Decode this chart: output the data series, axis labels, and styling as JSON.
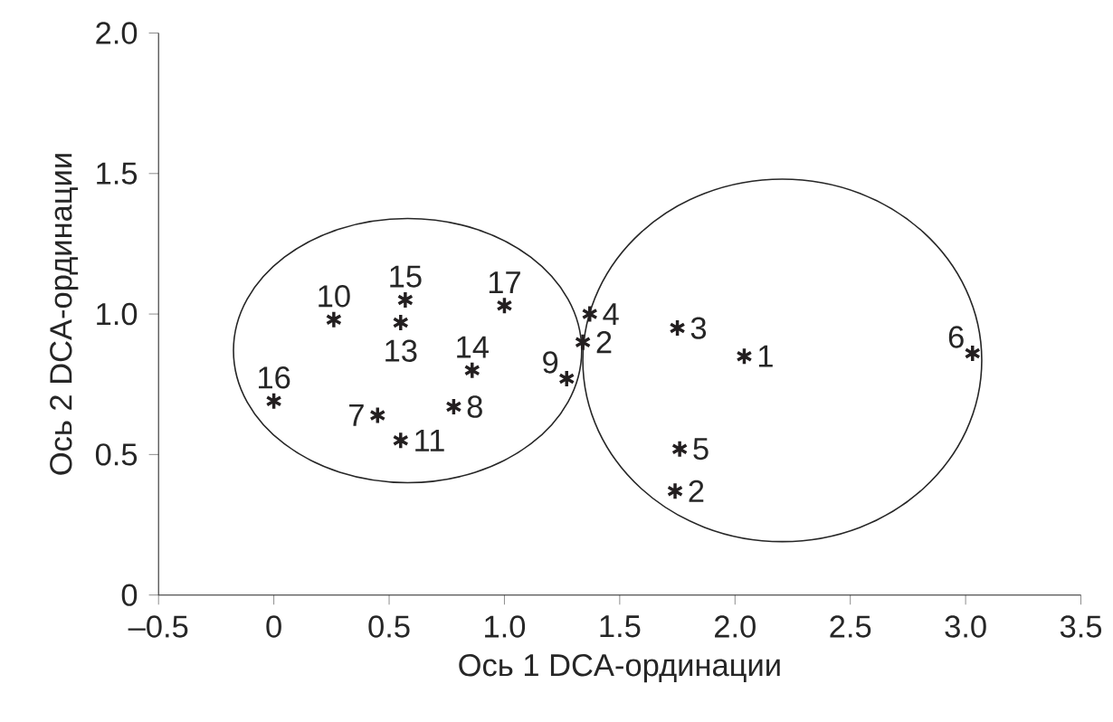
{
  "chart_data": {
    "type": "scatter",
    "xlabel": "Ось 1 DCA-ординации",
    "ylabel": "Ось 2 DCA-ординации",
    "x": [
      2.04,
      1.34,
      1.74,
      1.75,
      1.37,
      1.76,
      3.03,
      0.45,
      0.78,
      1.27,
      0.26,
      0.55,
      0.55,
      0.86,
      0.57,
      0,
      1.0
    ],
    "values": [
      0.85,
      0.9,
      0.37,
      0.95,
      1.0,
      0.52,
      0.86,
      0.64,
      0.67,
      0.77,
      0.98,
      0.55,
      0.97,
      0.8,
      1.05,
      0.69,
      1.03
    ],
    "color": "#231f20",
    "marker": "cross",
    "xlim": [
      -0.5,
      3.5
    ],
    "ylim": [
      0,
      2
    ],
    "xticks": [
      {
        "value": -0.5,
        "label": "–0.5"
      },
      0,
      0.5,
      {
        "value": 1,
        "label": "1.0"
      },
      1.5,
      {
        "value": 2,
        "label": "2.0"
      },
      2.5,
      {
        "value": 3,
        "label": "3.0"
      },
      3.5
    ],
    "yticks": [
      0,
      0.5,
      {
        "value": 1,
        "label": "1.0"
      },
      1.5,
      {
        "value": 2,
        "label": "2.0"
      }
    ],
    "annotations": [
      {
        "text": "1",
        "x": 2.04,
        "y": 0.85
      },
      {
        "text": "2",
        "x": 1.34,
        "y": 0.9
      },
      {
        "text": "2",
        "x": 1.74,
        "y": 0.37
      },
      {
        "text": "3",
        "x": 1.75,
        "y": 0.95
      },
      {
        "text": "4",
        "x": 1.37,
        "y": 1.0
      },
      {
        "text": "5",
        "x": 1.76,
        "y": 0.52
      },
      {
        "text": "6",
        "x": 3.03,
        "y": 0.86
      },
      {
        "text": "7",
        "x": 0.45,
        "y": 0.64
      },
      {
        "text": "8",
        "x": 0.78,
        "y": 0.67
      },
      {
        "text": "9",
        "x": 1.27,
        "y": 0.77
      },
      {
        "text": "10",
        "x": 0.26,
        "y": 0.98
      },
      {
        "text": "11",
        "x": 0.55,
        "y": 0.55
      },
      {
        "text": "13",
        "x": 0.55,
        "y": 0.97
      },
      {
        "text": "14",
        "x": 0.86,
        "y": 0.8
      },
      {
        "text": "15",
        "x": 0.57,
        "y": 1.05
      },
      {
        "text": "16",
        "x": 0,
        "y": 0.69
      },
      {
        "text": "17",
        "x": 1.0,
        "y": 1.03
      }
    ]
  }
}
